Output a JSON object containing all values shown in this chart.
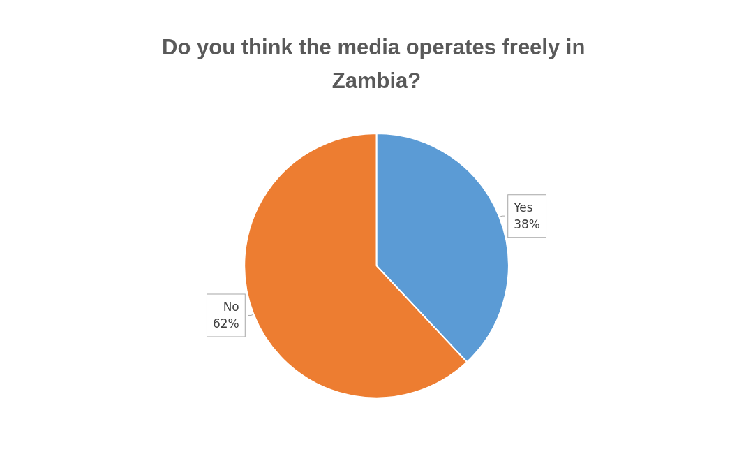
{
  "chart_data": {
    "type": "pie",
    "title": "Do you think the media operates freely in Zambia?",
    "categories": [
      "Yes",
      "No"
    ],
    "values": [
      38,
      62
    ],
    "colors": [
      "#5b9bd5",
      "#ed7d31"
    ],
    "value_labels": [
      "38%",
      "62%"
    ],
    "legend": false
  }
}
